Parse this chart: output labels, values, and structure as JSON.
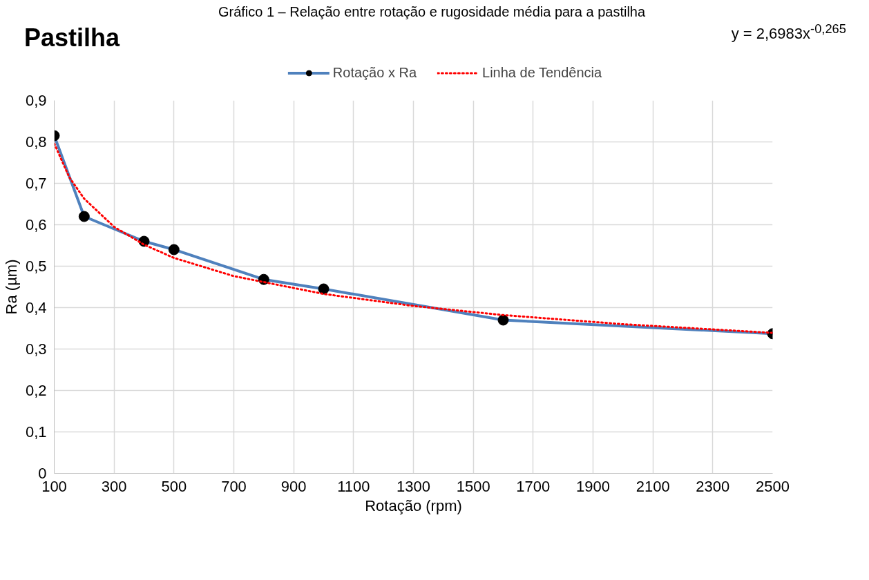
{
  "chart_data": {
    "type": "line",
    "title": "Pastilha",
    "xlabel": "Rotação (rpm)",
    "ylabel": "Ra (µm)",
    "annotations": [
      "Gráfico 1 – Relação entre rotação e rugosidade média para a pastilha",
      "y = 2,6983x$^{-0,265}$"
    ],
    "x": [
      100,
      200,
      400,
      500,
      800,
      1000,
      1600,
      2500
    ],
    "series": [
      {
        "name": "Rotação x Ra",
        "color": "#4f81bd",
        "values": [
          0.815,
          0.62,
          0.56,
          0.54,
          0.468,
          0.445,
          0.37,
          0.337
        ],
        "marker": "circle",
        "line_style": "solid"
      },
      {
        "name": "Linha de Tendência",
        "color": "#ff0000",
        "type": "line",
        "x": [
          100,
          150,
          200,
          300,
          400,
          500,
          700,
          1000,
          1300,
          1600,
          2000,
          2500
        ],
        "values": [
          0.796,
          0.715,
          0.663,
          0.595,
          0.552,
          0.52,
          0.476,
          0.433,
          0.404,
          0.382,
          0.36,
          0.339
        ],
        "marker": "none",
        "line_style": "dotted"
      }
    ],
    "xlim": [
      100,
      2500
    ],
    "xticks": [
      100,
      300,
      500,
      700,
      900,
      1100,
      1300,
      1500,
      1700,
      1900,
      2100,
      2300,
      2500
    ],
    "ylim": [
      0,
      0.9
    ],
    "yticks": [
      {
        "value": 0,
        "label": "0"
      },
      {
        "value": 0.1,
        "label": "0,1"
      },
      {
        "value": 0.2,
        "label": "0,2"
      },
      {
        "value": 0.3,
        "label": "0,3"
      },
      {
        "value": 0.4,
        "label": "0,4"
      },
      {
        "value": 0.5,
        "label": "0,5"
      },
      {
        "value": 0.6,
        "label": "0,6"
      },
      {
        "value": 0.7,
        "label": "0,7"
      },
      {
        "value": 0.8,
        "label": "0,8"
      },
      {
        "value": 0.9,
        "label": "0,9"
      }
    ],
    "grid": true,
    "legend": "top"
  }
}
